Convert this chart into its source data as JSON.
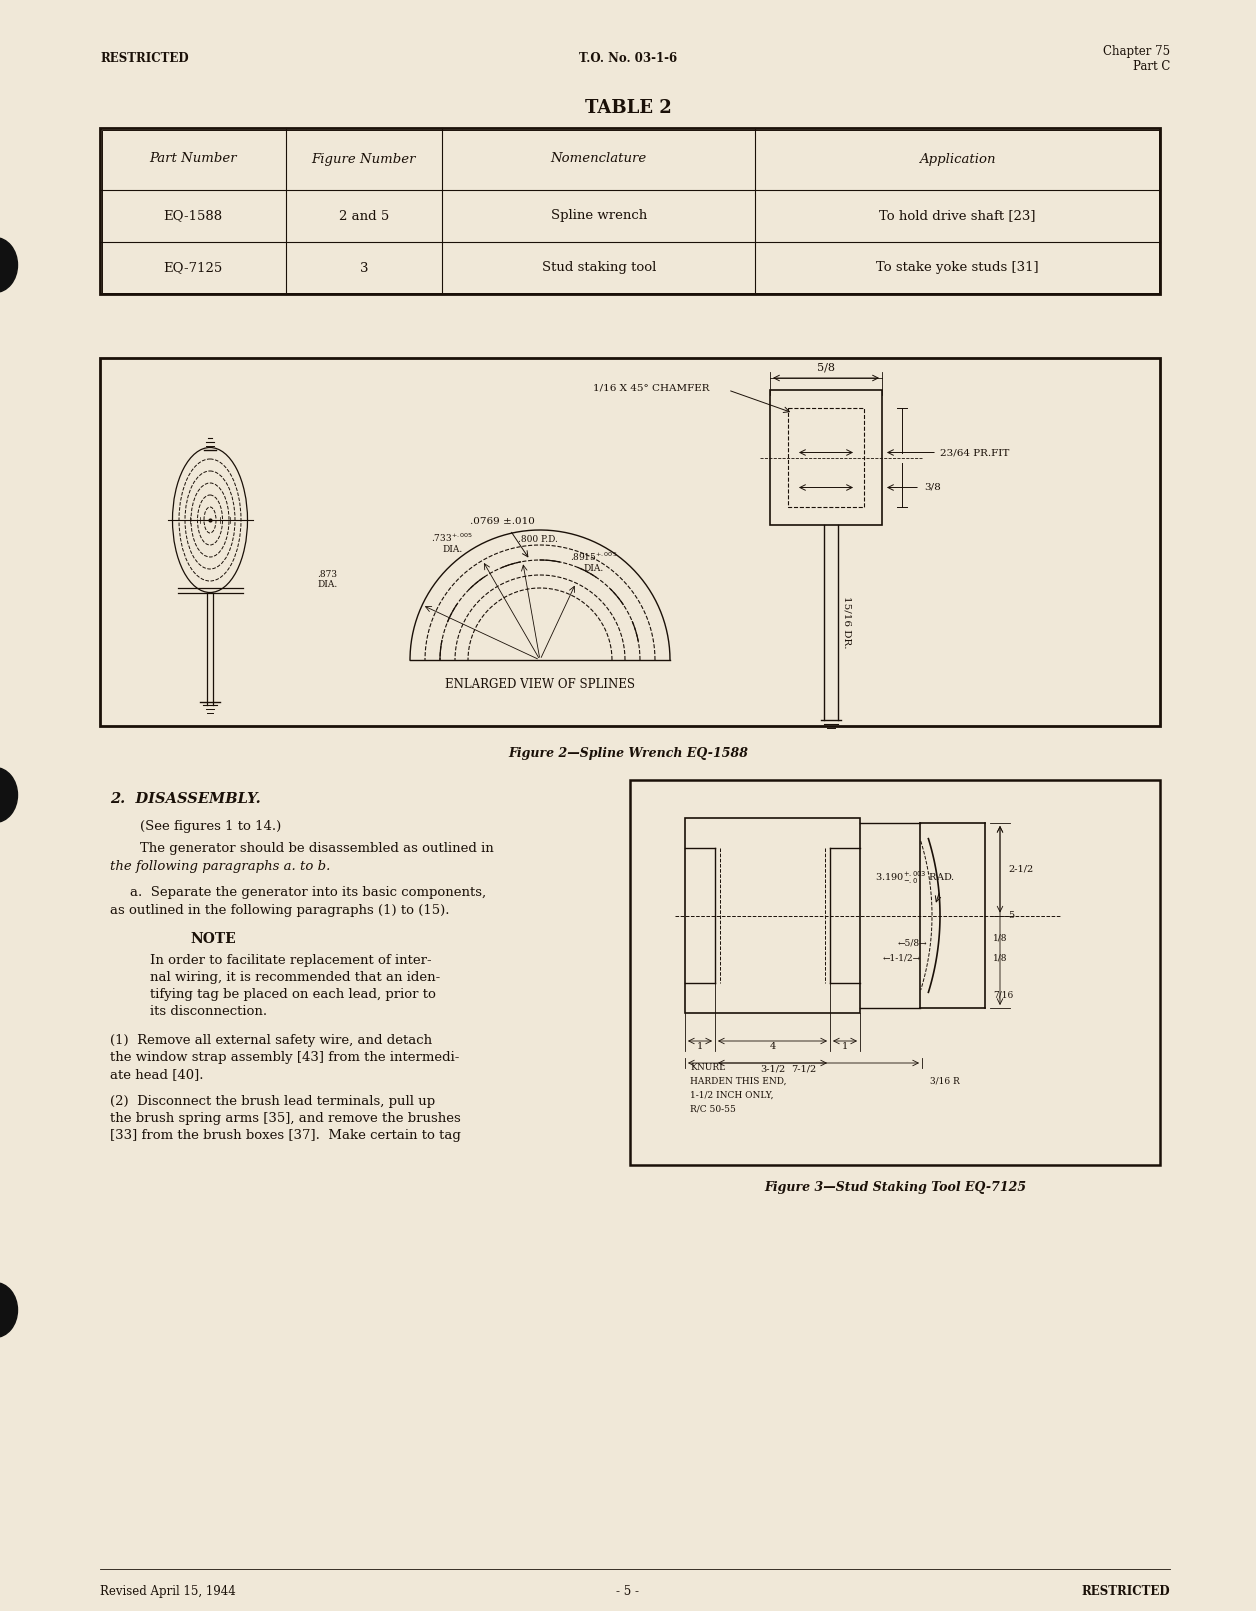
{
  "bg_color": "#f0e8d8",
  "text_color": "#1a1008",
  "header_left": "RESTRICTED",
  "header_center": "T.O. No. 03-1-6",
  "header_right_line1": "Chapter 75",
  "header_right_line2": "Part C",
  "table_title": "TABLE 2",
  "table_headers": [
    "Part Number",
    "Figure Number",
    "Nomenclature",
    "Application"
  ],
  "table_rows": [
    [
      "EQ-1588",
      "2 and 5",
      "Spline wrench",
      "To hold drive shaft [23]"
    ],
    [
      "EQ-7125",
      "3",
      "Stud staking tool",
      "To stake yoke studs [31]"
    ]
  ],
  "fig2_caption": "Figure 2—Spline Wrench EQ-1588",
  "fig3_caption": "Figure 3—Stud Staking Tool EQ-7125",
  "section_title": "2.  DISASSEMBLY.",
  "para_see": "(See figures 1 to 14.)",
  "para1_line1": "The generator should be disassembled as outlined in",
  "para1_line2": "the following paragraphs à. to b.",
  "para2a_line1": "a.  Separate the generator into its basic components,",
  "para2a_line2": "as outlined in the following paragraphs (1) to (15).",
  "note_title": "NOTE",
  "note_lines": [
    "In order to facilitate replacement of inter-",
    "nal wiring, it is recommended that an iden-",
    "tifying tag be placed on each lead, prior to",
    "its disconnection."
  ],
  "para_1_lines": [
    "(1)  Remove all external safety wire, and detach",
    "the window strap assembly [43] from the intermedi-",
    "ate head [40]."
  ],
  "para_2_lines": [
    "(2)  Disconnect the brush lead terminals, pull up",
    "the brush spring arms [35], and remove the brushes",
    "[33] from the brush boxes [37].  Make certain to tag"
  ],
  "footer_left": "Revised April 15, 1944",
  "footer_center": "- 5 -",
  "footer_right": "RESTRICTED"
}
